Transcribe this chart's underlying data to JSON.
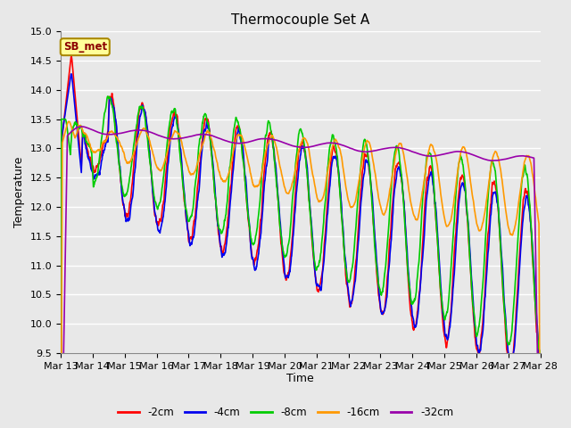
{
  "title": "Thermocouple Set A",
  "xlabel": "Time",
  "ylabel": "Temperature",
  "ylim": [
    9.5,
    15.0
  ],
  "yticks": [
    9.5,
    10.0,
    10.5,
    11.0,
    11.5,
    12.0,
    12.5,
    13.0,
    13.5,
    14.0,
    14.5,
    15.0
  ],
  "xtick_labels": [
    "Mar 13",
    "Mar 14",
    "Mar 15",
    "Mar 16",
    "Mar 17",
    "Mar 18",
    "Mar 19",
    "Mar 20",
    "Mar 21",
    "Mar 22",
    "Mar 23",
    "Mar 24",
    "Mar 25",
    "Mar 26",
    "Mar 27",
    "Mar 28"
  ],
  "series_colors": [
    "#ff0000",
    "#0000ee",
    "#00cc00",
    "#ff9900",
    "#9900aa"
  ],
  "series_labels": [
    "-2cm",
    "-4cm",
    "-8cm",
    "-16cm",
    "-32cm"
  ],
  "legend_label": "SB_met",
  "legend_bg": "#ffff99",
  "legend_edge": "#aa8800",
  "plot_bg": "#e8e8e8",
  "grid_color": "#ffffff",
  "title_fontsize": 11,
  "axis_fontsize": 9,
  "tick_fontsize": 8
}
